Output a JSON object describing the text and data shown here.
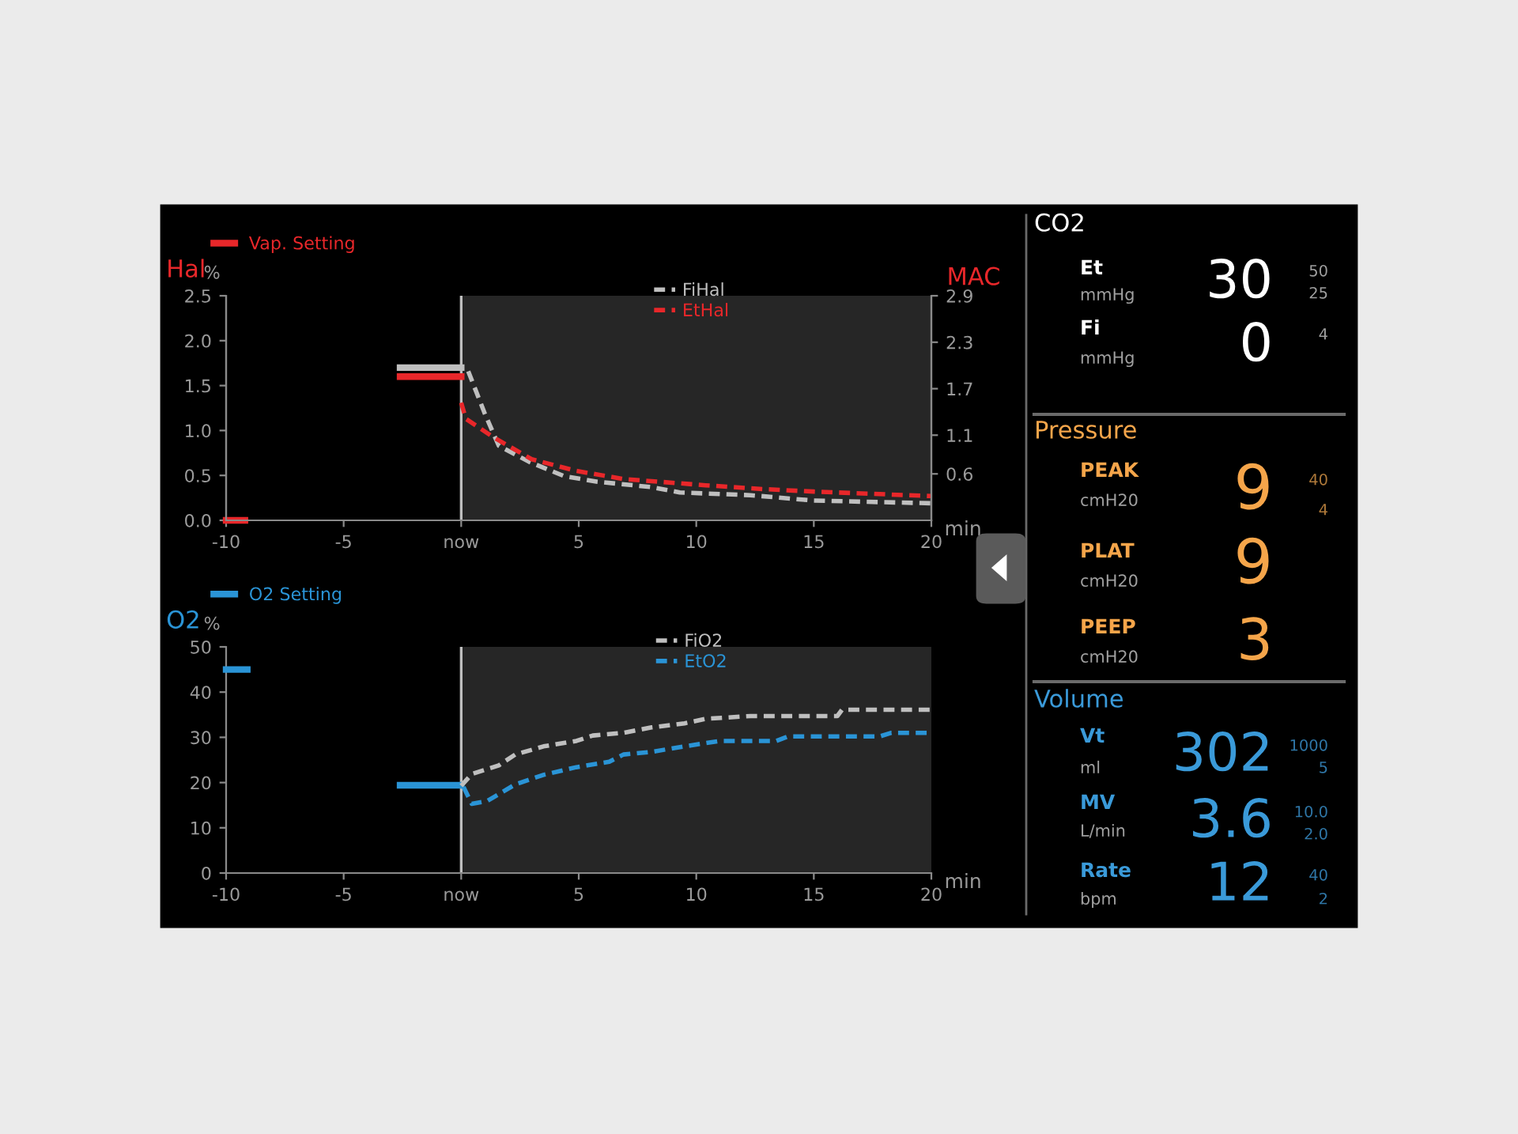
{
  "chart_data": [
    {
      "type": "line",
      "title": "Hal",
      "ylabel": "%",
      "xlabel": "min",
      "y2label": "MAC",
      "xlim": [
        -10,
        20
      ],
      "xticks": [
        -10,
        -5,
        {
          "value": 0,
          "label": "now"
        },
        5,
        10,
        15,
        20
      ],
      "ylim": [
        0,
        2.5
      ],
      "yticks": [
        {
          "value": 0,
          "label": "0.0"
        },
        0.5,
        {
          "value": 1,
          "label": "1.0"
        },
        1.5,
        {
          "value": 2,
          "label": "2.0"
        },
        2.5
      ],
      "y2lim": [
        0,
        2.9
      ],
      "y2ticks": [
        0.6,
        1.1,
        1.7,
        2.3,
        2.9
      ],
      "legend": "top",
      "grid": false,
      "bands": [
        {
          "axis": "x",
          "from": 0,
          "to": 20,
          "color": "#262626"
        }
      ],
      "ref_lines": [
        {
          "axis": "x",
          "value": 0,
          "color": "#bfbfbf"
        }
      ],
      "series": [
        {
          "name": "Vap. Setting",
          "color": "#e8272a",
          "line_style": "solid",
          "x": [
            -10,
            -9.2
          ],
          "values": [
            0,
            0
          ]
        },
        {
          "color": "#bfbfbf",
          "line_style": "solid",
          "x": [
            -2.6,
            0
          ],
          "values": [
            1.7,
            1.7
          ]
        },
        {
          "color": "#e8272a",
          "line_style": "solid",
          "x": [
            -2.6,
            0
          ],
          "values": [
            1.6,
            1.6
          ]
        },
        {
          "name": "FiHal",
          "color": "#bfbfbf",
          "line_style": "dashed",
          "x": [
            0.3,
            1.0,
            1.6,
            2.9,
            4.4,
            5.8,
            8.1,
            9.3,
            12.3,
            15,
            20
          ],
          "values": [
            1.66,
            1.19,
            0.83,
            0.65,
            0.49,
            0.43,
            0.37,
            0.31,
            0.28,
            0.22,
            0.19
          ]
        },
        {
          "name": "EtHal",
          "color": "#e8272a",
          "line_style": "dashed",
          "x": [
            0,
            0.2,
            1.4,
            3,
            4.9,
            6.9,
            10.4,
            12.7,
            15,
            20
          ],
          "values": [
            1.31,
            1.13,
            0.92,
            0.68,
            0.55,
            0.46,
            0.39,
            0.35,
            0.32,
            0.27
          ]
        }
      ]
    },
    {
      "type": "line",
      "title": "O2",
      "ylabel": "%",
      "xlabel": "min",
      "xlim": [
        -10,
        20
      ],
      "xticks": [
        -10,
        -5,
        {
          "value": 0,
          "label": "now"
        },
        5,
        10,
        15,
        20
      ],
      "ylim": [
        0,
        50
      ],
      "yticks": [
        0,
        10,
        20,
        30,
        40,
        50
      ],
      "legend": "top",
      "grid": false,
      "bands": [
        {
          "axis": "x",
          "from": 0,
          "to": 20,
          "color": "#262626"
        }
      ],
      "ref_lines": [
        {
          "axis": "x",
          "value": 0,
          "color": "#bfbfbf"
        }
      ],
      "series": [
        {
          "name": "O2 Setting",
          "color": "#2a94d6",
          "line_style": "solid",
          "x": [
            -10,
            -9.1
          ],
          "values": [
            45,
            45
          ]
        },
        {
          "color": "#2a94d6",
          "line_style": "solid",
          "x": [
            -2.6,
            0
          ],
          "values": [
            19.4,
            19.4
          ]
        },
        {
          "name": "FiO2",
          "color": "#bfbfbf",
          "line_style": "dashed",
          "x": [
            0,
            0.45,
            1.6,
            2.3,
            3.5,
            4.9,
            5.6,
            6.9,
            8.1,
            9.5,
            10.4,
            12.3,
            16,
            16.2,
            20
          ],
          "values": [
            19.3,
            21.9,
            23.8,
            26.2,
            28,
            29.2,
            30.4,
            31,
            32.2,
            33.1,
            34.1,
            34.7,
            34.7,
            36.1,
            36.1
          ]
        },
        {
          "name": "EtO2",
          "color": "#2a94d6",
          "line_style": "dashed",
          "x": [
            0.1,
            0.45,
            1.1,
            2.3,
            3.5,
            4.9,
            6.3,
            6.9,
            8.1,
            9.5,
            11,
            13.4,
            13.9,
            17.8,
            18.3,
            20
          ],
          "values": [
            19,
            15.3,
            15.9,
            19.6,
            21.7,
            23.4,
            24.6,
            26.2,
            26.8,
            28,
            29.2,
            29.2,
            30.2,
            30.2,
            31,
            31
          ]
        }
      ]
    },
    {
      "type": "other",
      "annotations": [
        "CO2",
        "Et",
        "mmHg",
        "30",
        "50",
        "25",
        "Fi",
        "mmHg",
        "0",
        "4",
        "Pressure",
        "PEAK",
        "cmH20",
        "9",
        "40",
        "4",
        "PLAT",
        "cmH20",
        "9",
        "PEEP",
        "cmH20",
        "3",
        "Volume",
        "Vt",
        "ml",
        "302",
        "1000",
        "5",
        "MV",
        "L/min",
        "3.6",
        "10.0",
        "2.0",
        "Rate",
        "bpm",
        "12",
        "40",
        "2"
      ]
    }
  ]
}
